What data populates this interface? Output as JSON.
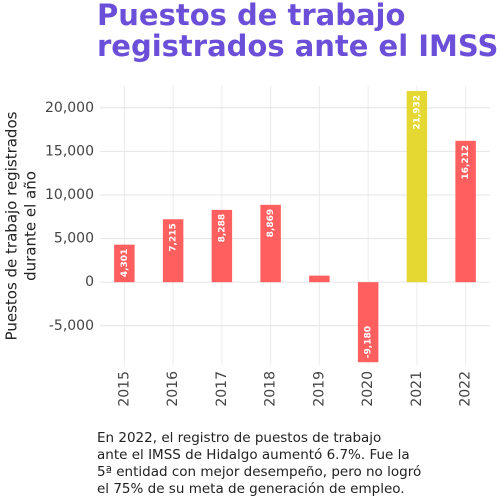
{
  "chart_data": {
    "type": "bar",
    "title": [
      "Puestos de trabajo",
      "registrados ante el IMSS"
    ],
    "ylabel": [
      "Puestos de trabajo registrados",
      "durante el año"
    ],
    "caption": [
      "En 2022, el registro de puestos de trabajo",
      "ante el IMSS de Hidalgo aumentó 6.7%. Fue la",
      "5ª entidad con mejor desempeño, pero no logró",
      "el 75% de su meta de generación de empleo."
    ],
    "categories": [
      "2015",
      "2016",
      "2017",
      "2018",
      "2019",
      "2020",
      "2021",
      "2022"
    ],
    "values": [
      4301,
      7215,
      8288,
      8869,
      750,
      -9180,
      21932,
      16212
    ],
    "value_labels": [
      "4,301",
      "7,215",
      "8,288",
      "8,869",
      null,
      "-9,180",
      "21,932",
      "16,212"
    ],
    "colors": [
      "#ff5f5f",
      "#ff5f5f",
      "#ff5f5f",
      "#ff5f5f",
      "#ff5f5f",
      "#ff5f5f",
      "#e6d832",
      "#ff5f5f"
    ],
    "ylim": [
      -9500,
      22500
    ],
    "yticks": [
      {
        "value": -5000,
        "label": "-5,000"
      },
      0,
      {
        "value": 5000,
        "label": "5,000"
      },
      {
        "value": 10000,
        "label": "10,000"
      },
      {
        "value": 15000,
        "label": "15,000"
      },
      {
        "value": 20000,
        "label": "20,000"
      }
    ],
    "grid": true
  }
}
